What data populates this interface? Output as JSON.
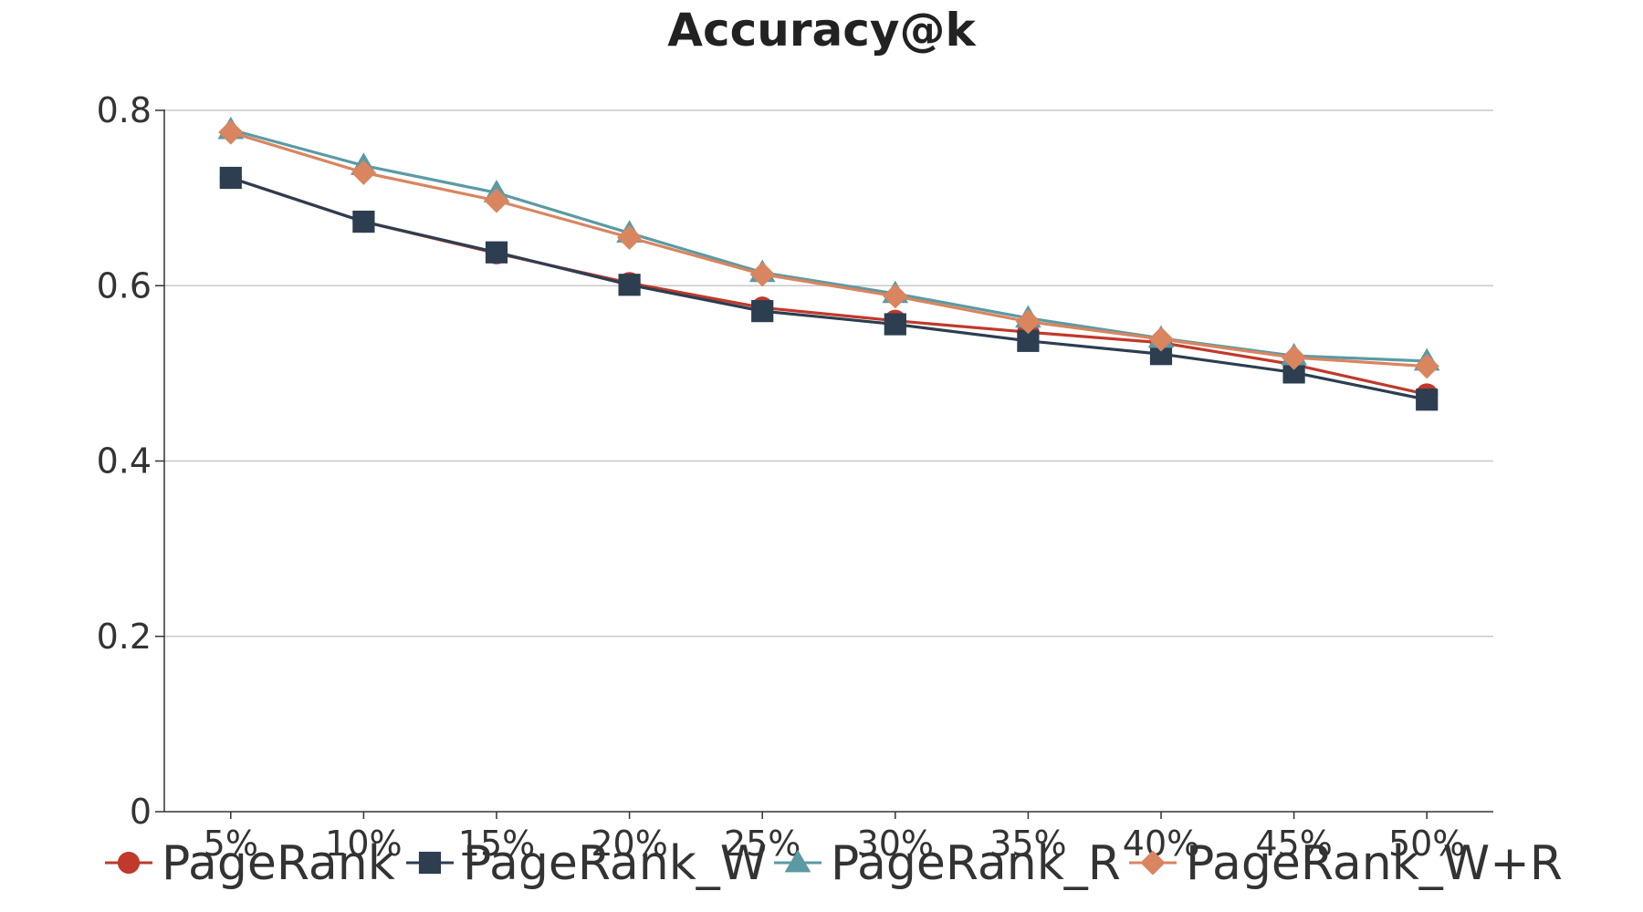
{
  "chart_data": {
    "type": "line",
    "title": "Accuracy@k",
    "categories": [
      "5%",
      "10%",
      "15%",
      "20%",
      "25%",
      "30%",
      "35%",
      "40%",
      "45%",
      "50%"
    ],
    "ylim": [
      0,
      0.8
    ],
    "yticks": [
      0,
      0.2,
      0.4,
      0.6,
      0.8
    ],
    "ytick_labels": [
      "0",
      "0.2",
      "0.4",
      "0.6",
      "0.8"
    ],
    "grid": true,
    "legend_position": "bottom",
    "series": [
      {
        "name": "PageRank",
        "color": "#c0392b",
        "marker": "circle",
        "values": [
          0.723,
          0.673,
          0.637,
          0.603,
          0.575,
          0.56,
          0.547,
          0.535,
          0.51,
          0.476
        ]
      },
      {
        "name": "PageRank_W",
        "color": "#2c3e50",
        "marker": "square",
        "values": [
          0.723,
          0.673,
          0.638,
          0.601,
          0.571,
          0.556,
          0.537,
          0.522,
          0.501,
          0.47
        ]
      },
      {
        "name": "PageRank_R",
        "color": "#5b9aa3",
        "marker": "triangle",
        "values": [
          0.778,
          0.737,
          0.706,
          0.66,
          0.615,
          0.591,
          0.563,
          0.54,
          0.52,
          0.514
        ]
      },
      {
        "name": "PageRank_W+R",
        "color": "#d98560",
        "marker": "diamond",
        "values": [
          0.775,
          0.729,
          0.697,
          0.655,
          0.613,
          0.588,
          0.559,
          0.539,
          0.518,
          0.508
        ]
      }
    ]
  }
}
